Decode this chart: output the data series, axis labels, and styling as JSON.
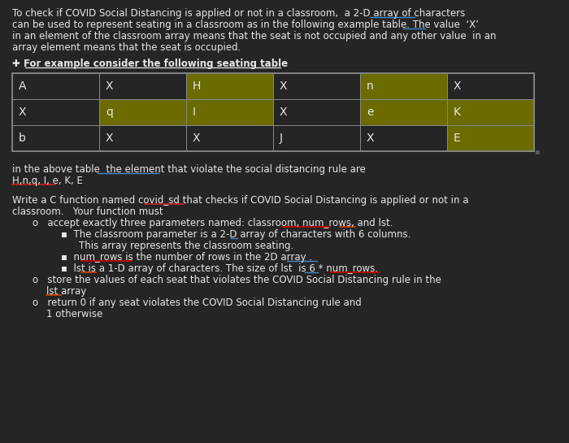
{
  "bg_color": "#252525",
  "text_color": "#e8e8e8",
  "table_bg_dark": "#252525",
  "table_bg_olive": "#6b6b00",
  "table_border": "#888888",
  "table_data": [
    [
      "A",
      "X",
      "H",
      "X",
      "n",
      "X"
    ],
    [
      "X",
      "q",
      "I",
      "X",
      "e",
      "K"
    ],
    [
      "b",
      "X",
      "X",
      "J",
      "X",
      "E"
    ]
  ],
  "table_highlight": [
    [
      false,
      false,
      true,
      false,
      true,
      false
    ],
    [
      false,
      true,
      true,
      false,
      true,
      true
    ],
    [
      false,
      false,
      false,
      false,
      false,
      true
    ]
  ]
}
